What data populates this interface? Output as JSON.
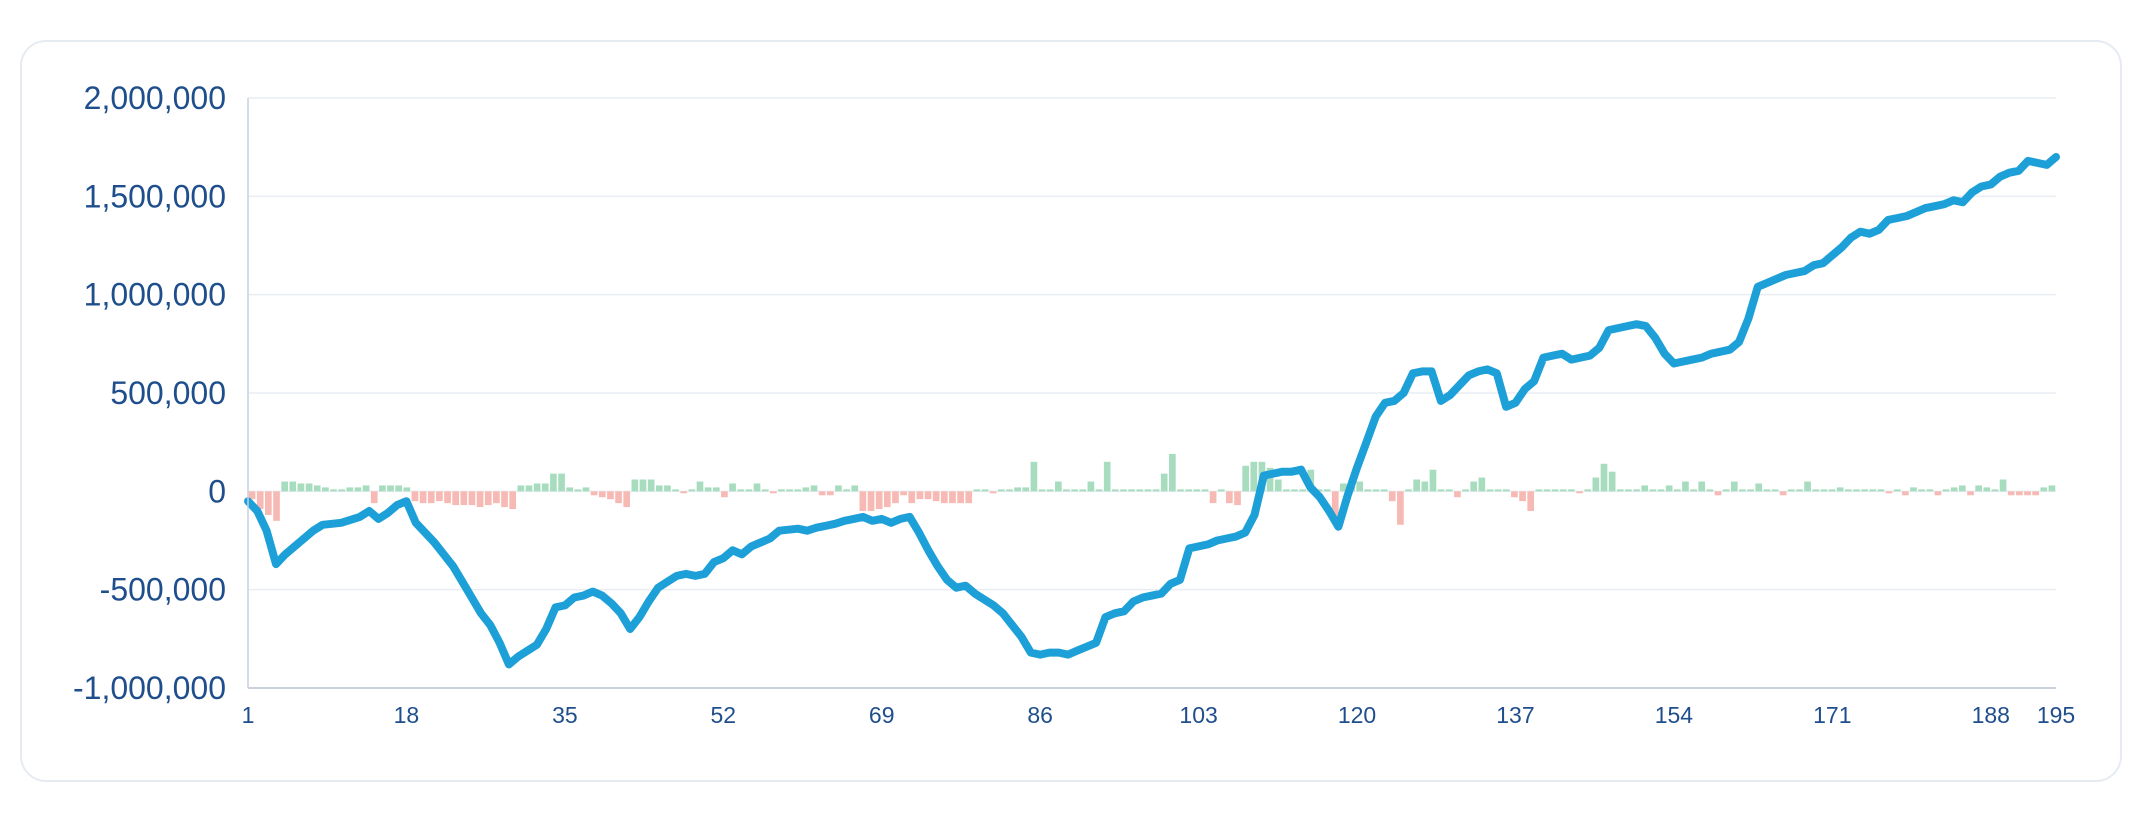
{
  "chart_data": {
    "type": "line",
    "title": "",
    "xlabel": "",
    "ylabel": "",
    "ylim": [
      -1000000,
      2000000
    ],
    "y_ticks": [
      "2,000,000",
      "1,500,000",
      "1,000,000",
      "500,000",
      "0",
      "-500,000",
      "-1,000,000"
    ],
    "y_tick_values": [
      2000000,
      1500000,
      1000000,
      500000,
      0,
      -500000,
      -1000000
    ],
    "x_range": [
      1,
      195
    ],
    "x_ticks": [
      "1",
      "18",
      "35",
      "52",
      "69",
      "86",
      "103",
      "120",
      "137",
      "154",
      "171",
      "188",
      "195"
    ],
    "x_tick_values": [
      1,
      18,
      35,
      52,
      69,
      86,
      103,
      120,
      137,
      154,
      171,
      188,
      195
    ],
    "grid": true,
    "colors": {
      "line": "#1d9fd8",
      "bar_positive": "#a8dcbf",
      "bar_negative": "#f7b9b3",
      "grid": "#e9edf3",
      "axis": "#c9d1dc",
      "tick_text": "#1f4e8c"
    },
    "series": [
      {
        "kind": "line",
        "points": [
          [
            1,
            -50000
          ],
          [
            2,
            -100000
          ],
          [
            3,
            -200000
          ],
          [
            4,
            -370000
          ],
          [
            5,
            -320000
          ],
          [
            6,
            -280000
          ],
          [
            8,
            -200000
          ],
          [
            9,
            -170000
          ],
          [
            11,
            -160000
          ],
          [
            13,
            -130000
          ],
          [
            14,
            -100000
          ],
          [
            15,
            -140000
          ],
          [
            16,
            -110000
          ],
          [
            17,
            -70000
          ],
          [
            18,
            -50000
          ],
          [
            19,
            -160000
          ],
          [
            20,
            -210000
          ],
          [
            21,
            -260000
          ],
          [
            22,
            -320000
          ],
          [
            23,
            -380000
          ],
          [
            24,
            -460000
          ],
          [
            25,
            -540000
          ],
          [
            26,
            -620000
          ],
          [
            27,
            -680000
          ],
          [
            28,
            -770000
          ],
          [
            29,
            -880000
          ],
          [
            30,
            -840000
          ],
          [
            31,
            -810000
          ],
          [
            32,
            -780000
          ],
          [
            33,
            -700000
          ],
          [
            34,
            -590000
          ],
          [
            35,
            -580000
          ],
          [
            36,
            -540000
          ],
          [
            37,
            -530000
          ],
          [
            38,
            -510000
          ],
          [
            39,
            -530000
          ],
          [
            40,
            -570000
          ],
          [
            41,
            -620000
          ],
          [
            42,
            -700000
          ],
          [
            43,
            -640000
          ],
          [
            44,
            -560000
          ],
          [
            45,
            -490000
          ],
          [
            46,
            -460000
          ],
          [
            47,
            -430000
          ],
          [
            48,
            -420000
          ],
          [
            49,
            -430000
          ],
          [
            50,
            -420000
          ],
          [
            51,
            -360000
          ],
          [
            52,
            -340000
          ],
          [
            53,
            -300000
          ],
          [
            54,
            -320000
          ],
          [
            55,
            -280000
          ],
          [
            56,
            -260000
          ],
          [
            57,
            -240000
          ],
          [
            58,
            -200000
          ],
          [
            59,
            -195000
          ],
          [
            60,
            -190000
          ],
          [
            61,
            -200000
          ],
          [
            62,
            -185000
          ],
          [
            63,
            -175000
          ],
          [
            64,
            -165000
          ],
          [
            65,
            -150000
          ],
          [
            66,
            -140000
          ],
          [
            67,
            -130000
          ],
          [
            68,
            -150000
          ],
          [
            69,
            -140000
          ],
          [
            70,
            -160000
          ],
          [
            71,
            -140000
          ],
          [
            72,
            -130000
          ],
          [
            73,
            -210000
          ],
          [
            74,
            -300000
          ],
          [
            75,
            -380000
          ],
          [
            76,
            -450000
          ],
          [
            77,
            -490000
          ],
          [
            78,
            -480000
          ],
          [
            79,
            -520000
          ],
          [
            80,
            -550000
          ],
          [
            81,
            -580000
          ],
          [
            82,
            -620000
          ],
          [
            83,
            -680000
          ],
          [
            84,
            -740000
          ],
          [
            85,
            -820000
          ],
          [
            86,
            -830000
          ],
          [
            87,
            -820000
          ],
          [
            88,
            -820000
          ],
          [
            89,
            -830000
          ],
          [
            90,
            -810000
          ],
          [
            91,
            -790000
          ],
          [
            92,
            -770000
          ],
          [
            93,
            -640000
          ],
          [
            94,
            -620000
          ],
          [
            95,
            -610000
          ],
          [
            96,
            -560000
          ],
          [
            97,
            -540000
          ],
          [
            98,
            -530000
          ],
          [
            99,
            -520000
          ],
          [
            100,
            -470000
          ],
          [
            101,
            -450000
          ],
          [
            102,
            -290000
          ],
          [
            103,
            -280000
          ],
          [
            104,
            -270000
          ],
          [
            105,
            -250000
          ],
          [
            106,
            -240000
          ],
          [
            107,
            -230000
          ],
          [
            108,
            -210000
          ],
          [
            109,
            -120000
          ],
          [
            110,
            80000
          ],
          [
            111,
            90000
          ],
          [
            112,
            100000
          ],
          [
            113,
            100000
          ],
          [
            114,
            110000
          ],
          [
            115,
            20000
          ],
          [
            116,
            -30000
          ],
          [
            117,
            -100000
          ],
          [
            118,
            -180000
          ],
          [
            119,
            -20000
          ],
          [
            120,
            120000
          ],
          [
            121,
            250000
          ],
          [
            122,
            380000
          ],
          [
            123,
            450000
          ],
          [
            124,
            460000
          ],
          [
            125,
            500000
          ],
          [
            126,
            600000
          ],
          [
            127,
            610000
          ],
          [
            128,
            610000
          ],
          [
            129,
            460000
          ],
          [
            130,
            490000
          ],
          [
            131,
            540000
          ],
          [
            132,
            590000
          ],
          [
            133,
            610000
          ],
          [
            134,
            620000
          ],
          [
            135,
            600000
          ],
          [
            136,
            430000
          ],
          [
            137,
            450000
          ],
          [
            138,
            520000
          ],
          [
            139,
            560000
          ],
          [
            140,
            680000
          ],
          [
            141,
            690000
          ],
          [
            142,
            700000
          ],
          [
            143,
            670000
          ],
          [
            144,
            680000
          ],
          [
            145,
            690000
          ],
          [
            146,
            730000
          ],
          [
            147,
            820000
          ],
          [
            148,
            830000
          ],
          [
            149,
            840000
          ],
          [
            150,
            850000
          ],
          [
            151,
            840000
          ],
          [
            152,
            780000
          ],
          [
            153,
            700000
          ],
          [
            154,
            650000
          ],
          [
            155,
            660000
          ],
          [
            156,
            670000
          ],
          [
            157,
            680000
          ],
          [
            158,
            700000
          ],
          [
            159,
            710000
          ],
          [
            160,
            720000
          ],
          [
            161,
            760000
          ],
          [
            162,
            880000
          ],
          [
            163,
            1040000
          ],
          [
            164,
            1060000
          ],
          [
            165,
            1080000
          ],
          [
            166,
            1100000
          ],
          [
            167,
            1110000
          ],
          [
            168,
            1120000
          ],
          [
            169,
            1150000
          ],
          [
            170,
            1160000
          ],
          [
            171,
            1200000
          ],
          [
            172,
            1240000
          ],
          [
            173,
            1290000
          ],
          [
            174,
            1320000
          ],
          [
            175,
            1310000
          ],
          [
            176,
            1330000
          ],
          [
            177,
            1380000
          ],
          [
            178,
            1390000
          ],
          [
            179,
            1400000
          ],
          [
            180,
            1420000
          ],
          [
            181,
            1440000
          ],
          [
            182,
            1450000
          ],
          [
            183,
            1460000
          ],
          [
            184,
            1480000
          ],
          [
            185,
            1470000
          ],
          [
            186,
            1520000
          ],
          [
            187,
            1550000
          ],
          [
            188,
            1560000
          ],
          [
            189,
            1600000
          ],
          [
            190,
            1620000
          ],
          [
            191,
            1630000
          ],
          [
            192,
            1680000
          ],
          [
            193,
            1670000
          ],
          [
            194,
            1660000
          ],
          [
            195,
            1700000
          ]
        ]
      },
      {
        "kind": "bar",
        "x_start": 1,
        "values": [
          -40000,
          -90000,
          -120000,
          -150000,
          50000,
          50000,
          40000,
          40000,
          30000,
          20000,
          10000,
          10000,
          20000,
          20000,
          30000,
          -60000,
          30000,
          30000,
          30000,
          20000,
          -50000,
          -60000,
          -60000,
          -50000,
          -60000,
          -70000,
          -70000,
          -70000,
          -80000,
          -70000,
          -60000,
          -80000,
          -90000,
          30000,
          30000,
          40000,
          40000,
          90000,
          90000,
          20000,
          10000,
          20000,
          -20000,
          -30000,
          -40000,
          -60000,
          -80000,
          60000,
          60000,
          60000,
          30000,
          30000,
          10000,
          -10000,
          10000,
          50000,
          20000,
          20000,
          -30000,
          40000,
          10000,
          10000,
          40000,
          10000,
          -10000,
          10000,
          10000,
          10000,
          20000,
          30000,
          -20000,
          -20000,
          30000,
          10000,
          30000,
          -100000,
          -100000,
          -90000,
          -80000,
          -60000,
          -20000,
          -60000,
          -40000,
          -40000,
          -50000,
          -60000,
          -60000,
          -60000,
          -60000,
          10000,
          10000,
          -10000,
          10000,
          10000,
          20000,
          20000,
          150000,
          10000,
          10000,
          50000,
          10000,
          10000,
          10000,
          50000,
          10000,
          150000,
          10000,
          10000,
          10000,
          10000,
          10000,
          10000,
          90000,
          190000,
          10000,
          10000,
          10000,
          10000,
          -60000,
          10000,
          -60000,
          -70000,
          130000,
          150000,
          150000,
          120000,
          60000,
          10000,
          10000,
          10000,
          110000,
          10000,
          10000,
          -160000,
          40000,
          40000,
          50000,
          10000,
          10000,
          10000,
          -50000,
          -170000,
          10000,
          60000,
          50000,
          110000,
          10000,
          10000,
          -30000,
          10000,
          50000,
          70000,
          10000,
          10000,
          10000,
          -30000,
          -50000,
          -100000,
          10000,
          10000,
          10000,
          10000,
          10000,
          -10000,
          10000,
          70000,
          140000,
          100000,
          10000,
          10000,
          10000,
          30000,
          10000,
          10000,
          30000,
          10000,
          50000,
          10000,
          50000,
          10000,
          -20000,
          10000,
          50000,
          10000,
          10000,
          40000,
          10000,
          10000,
          -20000,
          10000,
          10000,
          50000,
          10000,
          10000,
          10000,
          20000,
          10000,
          10000,
          10000,
          10000,
          10000,
          -10000,
          10000,
          -20000,
          20000,
          10000,
          10000,
          -20000,
          10000,
          20000,
          30000,
          -20000,
          30000,
          20000,
          10000,
          60000,
          -20000,
          -20000,
          -20000,
          -20000,
          20000,
          30000
        ]
      }
    ]
  }
}
